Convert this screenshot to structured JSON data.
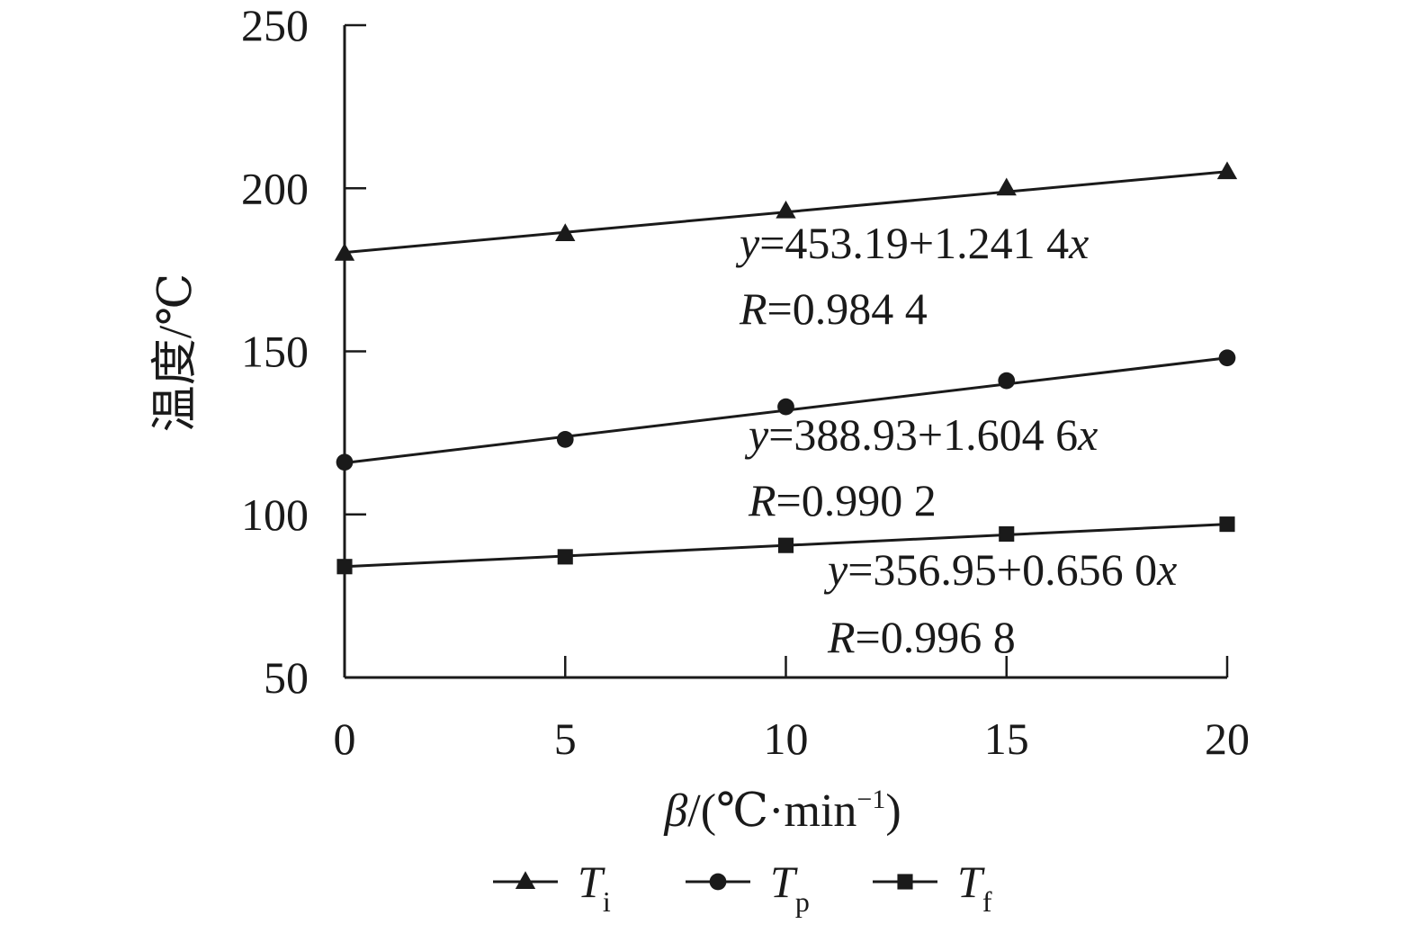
{
  "chart_data": {
    "type": "line",
    "xlabel": {
      "symbol": "β",
      "text": "/(℃·min",
      "sup": "−1",
      "close": ")"
    },
    "ylabel": "温度/℃",
    "x_ticks": [
      0,
      5,
      10,
      15,
      20
    ],
    "y_ticks": [
      50,
      100,
      150,
      200,
      250
    ],
    "xlim": [
      0,
      20
    ],
    "ylim": [
      50,
      250
    ],
    "grid": false,
    "legend_position": "bottom",
    "series": [
      {
        "name": "T",
        "sub": "i",
        "marker": "triangle",
        "x": [
          0,
          5,
          10,
          15,
          20
        ],
        "y": [
          180,
          186,
          193,
          200,
          205
        ],
        "fit_line": [
          180.3,
          205.1
        ],
        "equation": {
          "var": "y",
          "rhs": "=453.19+1.241 4",
          "x": "x"
        },
        "r_label": {
          "var": "R",
          "rhs": "=0.984 4"
        }
      },
      {
        "name": "T",
        "sub": "p",
        "marker": "circle",
        "x": [
          0,
          5,
          10,
          15,
          20
        ],
        "y": [
          116,
          123,
          133,
          141,
          148
        ],
        "fit_line": [
          115.8,
          148.0
        ],
        "equation": {
          "var": "y",
          "rhs": "=388.93+1.604 6",
          "x": "x"
        },
        "r_label": {
          "var": "R",
          "rhs": "=0.990 2"
        }
      },
      {
        "name": "T",
        "sub": "f",
        "marker": "square",
        "x": [
          0,
          5,
          10,
          15,
          20
        ],
        "y": [
          84,
          87,
          90.5,
          94,
          97
        ],
        "fit_line": [
          84.0,
          97.0
        ],
        "equation": {
          "var": "y",
          "rhs": "=356.95+0.656 0",
          "x": "x"
        },
        "r_label": {
          "var": "R",
          "rhs": "=0.996 8"
        }
      }
    ]
  },
  "colors": {
    "ink": "#1a1a1a",
    "background": "#ffffff"
  }
}
